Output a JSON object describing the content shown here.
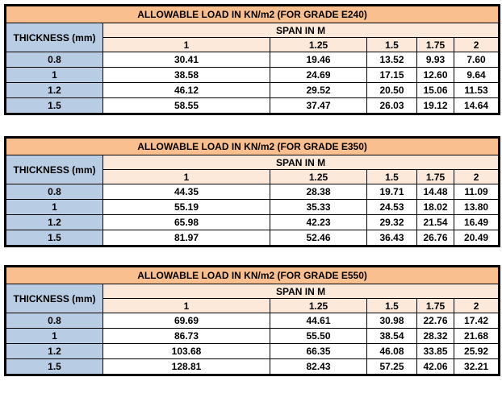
{
  "labels": {
    "thickness_header": "THICKNESS (mm)",
    "span_header": "SPAN IN M"
  },
  "colors": {
    "title_bg": "#FABF8F",
    "title_text": "#403152",
    "header_bg": "#FDE9D9",
    "thickness_bg": "#B8CCE4",
    "cell_bg": "#FFFFFF",
    "border": "#000000",
    "text": "#000000",
    "page_bg": "#FFFFFF"
  },
  "tables": [
    {
      "grade": "E240",
      "title": "ALLOWABLE LOAD IN KN/m2 (FOR GRADE E240)",
      "spans": [
        "1",
        "1.25",
        "1.5",
        "1.75",
        "2"
      ],
      "rows": [
        {
          "thickness": "0.8",
          "values": [
            "30.41",
            "19.46",
            "13.52",
            "9.93",
            "7.60"
          ]
        },
        {
          "thickness": "1",
          "values": [
            "38.58",
            "24.69",
            "17.15",
            "12.60",
            "9.64"
          ]
        },
        {
          "thickness": "1.2",
          "values": [
            "46.12",
            "29.52",
            "20.50",
            "15.06",
            "11.53"
          ]
        },
        {
          "thickness": "1.5",
          "values": [
            "58.55",
            "37.47",
            "26.03",
            "19.12",
            "14.64"
          ]
        }
      ]
    },
    {
      "grade": "E350",
      "title": "ALLOWABLE LOAD IN KN/m2 (FOR GRADE E350)",
      "spans": [
        "1",
        "1.25",
        "1.5",
        "1.75",
        "2"
      ],
      "rows": [
        {
          "thickness": "0.8",
          "values": [
            "44.35",
            "28.38",
            "19.71",
            "14.48",
            "11.09"
          ]
        },
        {
          "thickness": "1",
          "values": [
            "55.19",
            "35.33",
            "24.53",
            "18.02",
            "13.80"
          ]
        },
        {
          "thickness": "1.2",
          "values": [
            "65.98",
            "42.23",
            "29.32",
            "21.54",
            "16.49"
          ]
        },
        {
          "thickness": "1.5",
          "values": [
            "81.97",
            "52.46",
            "36.43",
            "26.76",
            "20.49"
          ]
        }
      ]
    },
    {
      "grade": "E550",
      "title": "ALLOWABLE LOAD IN KN/m2 (FOR GRADE E550)",
      "spans": [
        "1",
        "1.25",
        "1.5",
        "1.75",
        "2"
      ],
      "rows": [
        {
          "thickness": "0.8",
          "values": [
            "69.69",
            "44.61",
            "30.98",
            "22.76",
            "17.42"
          ]
        },
        {
          "thickness": "1",
          "values": [
            "86.73",
            "55.50",
            "38.54",
            "28.32",
            "21.68"
          ]
        },
        {
          "thickness": "1.2",
          "values": [
            "103.68",
            "66.35",
            "46.08",
            "33.85",
            "25.92"
          ]
        },
        {
          "thickness": "1.5",
          "values": [
            "128.81",
            "82.43",
            "57.25",
            "42.06",
            "32.21"
          ]
        }
      ]
    }
  ]
}
